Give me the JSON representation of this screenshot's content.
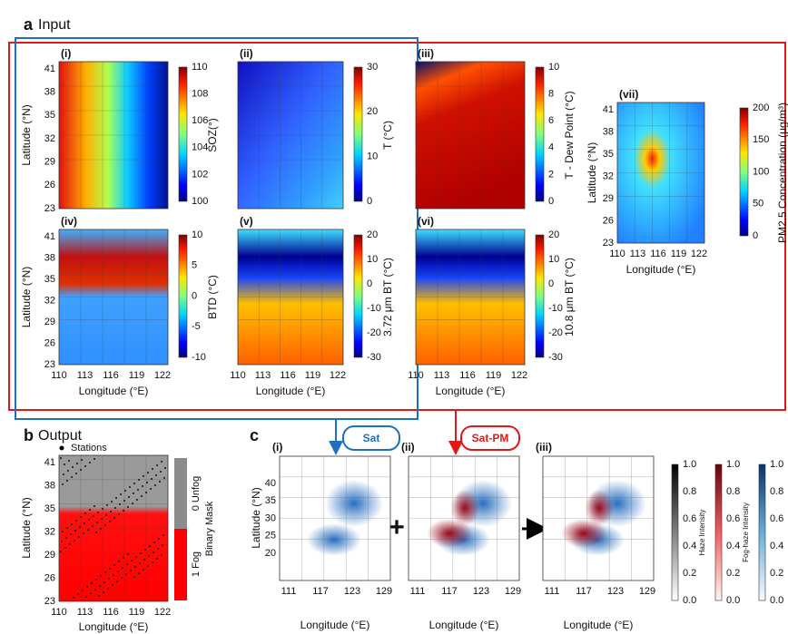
{
  "panel_a": {
    "letter": "a",
    "title": "Input",
    "y_label": "Latitude (°N)",
    "x_label": "Longitude (°E)",
    "y_ticks": [
      "41",
      "38",
      "35",
      "32",
      "29",
      "26",
      "23"
    ],
    "x_ticks": [
      "110",
      "113",
      "116",
      "119",
      "122"
    ],
    "subpanels": [
      {
        "label": "(i)",
        "colorbar_label": "SOZ(°)",
        "colorbar_ticks": [
          "110",
          "108",
          "106",
          "104",
          "102",
          "100"
        ]
      },
      {
        "label": "(ii)",
        "colorbar_label": "T (°C)",
        "colorbar_ticks": [
          "30",
          "20",
          "10",
          "0"
        ]
      },
      {
        "label": "(iii)",
        "colorbar_label": "T - Dew Point (°C)",
        "colorbar_ticks": [
          "10",
          "8",
          "6",
          "4",
          "2",
          "0"
        ]
      },
      {
        "label": "(iv)",
        "colorbar_label": "BTD (°C)",
        "colorbar_ticks": [
          "10",
          "5",
          "0",
          "-5",
          "-10"
        ]
      },
      {
        "label": "(v)",
        "colorbar_label": "3.72 μm BT (°C)",
        "colorbar_ticks": [
          "20",
          "10",
          "0",
          "-10",
          "-20",
          "-30"
        ]
      },
      {
        "label": "(vi)",
        "colorbar_label": "10.8 μm BT (°C)",
        "colorbar_ticks": [
          "20",
          "10",
          "0",
          "-10",
          "-20",
          "-30"
        ]
      },
      {
        "label": "(vii)",
        "colorbar_label": "PM2.5 Concentration (μg/m³)",
        "colorbar_ticks": [
          "200",
          "150",
          "100",
          "50",
          "0"
        ]
      }
    ]
  },
  "panel_b": {
    "letter": "b",
    "title": "Output",
    "legend": "Stations",
    "colorbar_label": "Binary Mask",
    "colorbar_classes": [
      "0 Unfog",
      "1 Fog"
    ],
    "y_label": "Latitude (°N)",
    "x_label": "Longitude (°E)",
    "y_ticks": [
      "41",
      "38",
      "35",
      "32",
      "29",
      "26",
      "23"
    ],
    "x_ticks": [
      "110",
      "113",
      "116",
      "119",
      "122"
    ]
  },
  "panel_c": {
    "letter": "c",
    "tags": [
      "Sat",
      "Sat-PM"
    ],
    "subpanels": [
      "(i)",
      "(ii)",
      "(iii)"
    ],
    "y_label": "Latitude (°N)",
    "x_label": "Longitude (°E)",
    "y_ticks": [
      "40",
      "35",
      "30",
      "25",
      "20"
    ],
    "x_ticks": [
      "111",
      "117",
      "123",
      "129"
    ],
    "colorbars": [
      {
        "label": "Haze Intensity",
        "ticks": [
          "1.0",
          "0.8",
          "0.6",
          "0.4",
          "0.2",
          "0.0"
        ]
      },
      {
        "label": "Fog-haze Intensity",
        "ticks": [
          "1.0",
          "0.8",
          "0.6",
          "0.4",
          "0.2",
          "0.0"
        ]
      },
      {
        "label": null,
        "ticks": [
          "1.0",
          "0.8",
          "0.6",
          "0.4",
          "0.2",
          "0.0"
        ]
      }
    ]
  }
}
